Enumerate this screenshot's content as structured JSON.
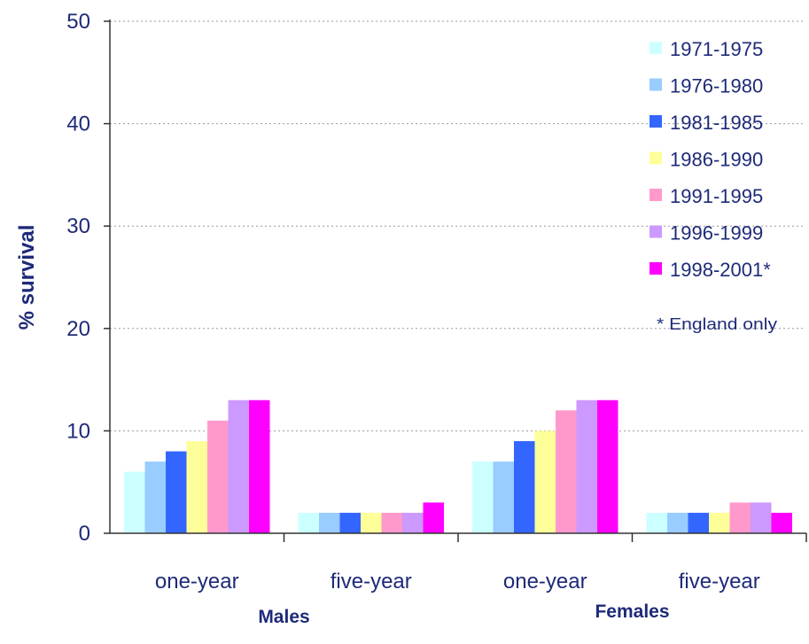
{
  "chart_data": {
    "type": "bar",
    "title": "",
    "ylabel": "% survival",
    "xlabel": "",
    "ylim": [
      0,
      50
    ],
    "yticks": [
      0,
      10,
      20,
      30,
      40,
      50
    ],
    "grid": true,
    "legend_position": "top-right",
    "groups": [
      {
        "label": "Males",
        "categories": [
          "one-year",
          "five-year"
        ]
      },
      {
        "label": "Females",
        "categories": [
          "one-year",
          "five-year"
        ]
      }
    ],
    "categories": [
      "one-year",
      "five-year",
      "one-year",
      "five-year"
    ],
    "series": [
      {
        "name": "1971-1975",
        "color": "#ccffff",
        "values": [
          6,
          2,
          7,
          2
        ]
      },
      {
        "name": "1976-1980",
        "color": "#99ccff",
        "values": [
          7,
          2,
          7,
          2
        ]
      },
      {
        "name": "1981-1985",
        "color": "#3366ff",
        "values": [
          8,
          2,
          9,
          2
        ]
      },
      {
        "name": "1986-1990",
        "color": "#ffff99",
        "values": [
          9,
          2,
          10,
          2
        ]
      },
      {
        "name": "1991-1995",
        "color": "#ff99cc",
        "values": [
          11,
          2,
          12,
          3
        ]
      },
      {
        "name": "1996-1999",
        "color": "#cc99ff",
        "values": [
          13,
          2,
          13,
          3
        ]
      },
      {
        "name": "1998-2001*",
        "color": "#ff00ff",
        "values": [
          13,
          3,
          13,
          2
        ]
      }
    ],
    "annotations": [
      "* England only"
    ]
  }
}
